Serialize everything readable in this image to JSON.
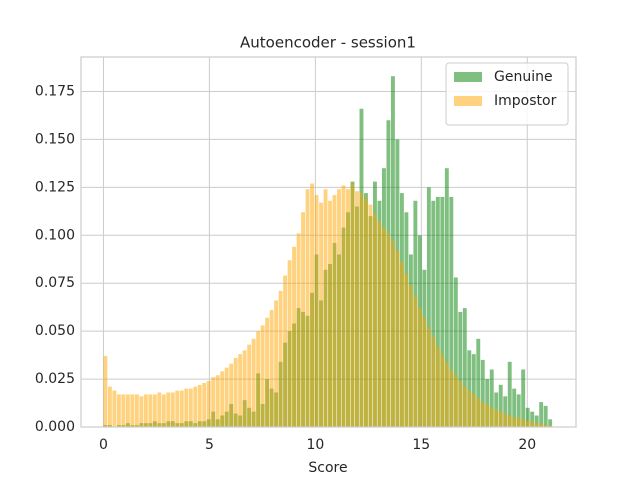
{
  "chart_data": {
    "type": "histogram",
    "title": "Autoencoder - session1",
    "x_label": "Score",
    "bins": [
      0,
      0.212,
      0.424,
      0.636,
      0.848,
      1.06,
      1.272,
      1.484,
      1.696,
      1.908,
      2.12,
      2.332,
      2.544,
      2.756,
      2.968,
      3.18,
      3.392,
      3.604,
      3.816,
      4.028,
      4.24,
      4.452,
      4.664,
      4.876,
      5.088,
      5.3,
      5.512,
      5.724,
      5.936,
      6.148,
      6.36,
      6.572,
      6.784,
      6.996,
      7.208,
      7.42,
      7.632,
      7.844,
      8.056,
      8.268,
      8.48,
      8.692,
      8.904,
      9.116,
      9.328,
      9.54,
      9.752,
      9.964,
      10.176,
      10.388,
      10.6,
      10.812,
      11.024,
      11.236,
      11.448,
      11.66,
      11.872,
      12.084,
      12.296,
      12.508,
      12.72,
      12.932,
      13.144,
      13.356,
      13.568,
      13.78,
      13.992,
      14.204,
      14.416,
      14.628,
      14.84,
      15.052,
      15.264,
      15.476,
      15.688,
      15.9,
      16.112,
      16.324,
      16.536,
      16.748,
      16.96,
      17.172,
      17.384,
      17.596,
      17.808,
      18.02,
      18.232,
      18.444,
      18.656,
      18.868,
      19.08,
      19.292,
      19.504,
      19.716,
      19.928,
      20.14,
      20.352,
      20.564,
      20.776,
      20.988,
      21.2
    ],
    "series": [
      {
        "name": "Genuine",
        "color": "green",
        "alpha": 0.5,
        "values": [
          0.001,
          0.001,
          0,
          0.001,
          0.001,
          0.002,
          0.001,
          0.001,
          0.002,
          0.002,
          0.002,
          0.003,
          0.002,
          0.002,
          0.003,
          0.003,
          0.002,
          0.002,
          0.003,
          0.003,
          0.002,
          0.003,
          0.003,
          0.004,
          0.008,
          0.004,
          0.006,
          0.008,
          0.012,
          0.007,
          0.006,
          0.014,
          0.01,
          0.008,
          0.028,
          0.012,
          0.025,
          0.02,
          0.018,
          0.034,
          0.044,
          0.05,
          0.054,
          0.062,
          0.06,
          0.058,
          0.07,
          0.09,
          0.066,
          0.082,
          0.085,
          0.096,
          0.09,
          0.104,
          0.112,
          0.128,
          0.115,
          0.166,
          0.122,
          0.11,
          0.128,
          0.118,
          0.135,
          0.16,
          0.183,
          0.15,
          0.122,
          0.112,
          0.09,
          0.118,
          0.1,
          0.082,
          0.125,
          0.118,
          0.12,
          0.12,
          0.135,
          0.12,
          0.078,
          0.06,
          0.062,
          0.04,
          0.038,
          0.046,
          0.035,
          0.025,
          0.03,
          0.018,
          0.022,
          0.016,
          0.034,
          0.02,
          0.017,
          0.03,
          0.01,
          0.008,
          0.006,
          0.013,
          0.011,
          0.004
        ]
      },
      {
        "name": "Impostor",
        "color": "orange",
        "alpha": 0.5,
        "values": [
          0.037,
          0.021,
          0.019,
          0.017,
          0.017,
          0.017,
          0.017,
          0.017,
          0.016,
          0.017,
          0.017,
          0.017,
          0.018,
          0.017,
          0.018,
          0.018,
          0.019,
          0.019,
          0.02,
          0.02,
          0.021,
          0.022,
          0.023,
          0.024,
          0.026,
          0.027,
          0.029,
          0.031,
          0.033,
          0.036,
          0.038,
          0.04,
          0.043,
          0.046,
          0.05,
          0.053,
          0.057,
          0.061,
          0.066,
          0.071,
          0.079,
          0.087,
          0.094,
          0.101,
          0.112,
          0.124,
          0.127,
          0.121,
          0.117,
          0.124,
          0.118,
          0.121,
          0.124,
          0.126,
          0.124,
          0.127,
          0.123,
          0.122,
          0.119,
          0.116,
          0.111,
          0.107,
          0.104,
          0.101,
          0.097,
          0.092,
          0.086,
          0.08,
          0.074,
          0.068,
          0.062,
          0.057,
          0.052,
          0.047,
          0.042,
          0.038,
          0.034,
          0.03,
          0.027,
          0.024,
          0.021,
          0.019,
          0.017,
          0.015,
          0.013,
          0.012,
          0.01,
          0.009,
          0.008,
          0.007,
          0.006,
          0.005,
          0.005,
          0.004,
          0.003,
          0.003,
          0.002,
          0.002,
          0.001,
          0.001
        ]
      }
    ],
    "xlim": [
      -1.06,
      22.3
    ],
    "ylim": [
      0,
      0.193
    ],
    "xticks": [
      0,
      5,
      10,
      15,
      20
    ],
    "yticks": [
      {
        "value": 0,
        "label": "0.000"
      },
      0.025,
      {
        "value": 0.05,
        "label": "0.050"
      },
      0.075,
      {
        "value": 0.1,
        "label": "0.100"
      },
      0.125,
      {
        "value": 0.15,
        "label": "0.150"
      },
      0.175
    ],
    "grid": true,
    "legend": "upper right"
  }
}
